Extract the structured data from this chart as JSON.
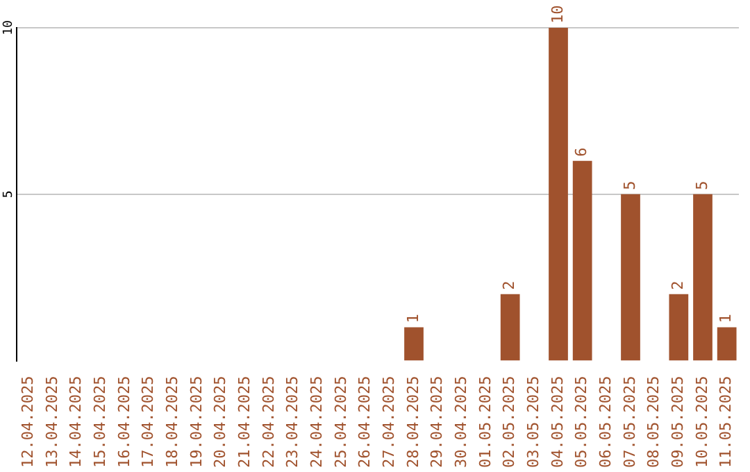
{
  "chart_data": {
    "type": "bar",
    "categories": [
      "12.04.2025",
      "13.04.2025",
      "14.04.2025",
      "15.04.2025",
      "16.04.2025",
      "17.04.2025",
      "18.04.2025",
      "19.04.2025",
      "20.04.2025",
      "21.04.2025",
      "22.04.2025",
      "23.04.2025",
      "24.04.2025",
      "25.04.2025",
      "26.04.2025",
      "27.04.2025",
      "28.04.2025",
      "29.04.2025",
      "30.04.2025",
      "01.05.2025",
      "02.05.2025",
      "03.05.2025",
      "04.05.2025",
      "05.05.2025",
      "06.05.2025",
      "07.05.2025",
      "08.05.2025",
      "09.05.2025",
      "10.05.2025",
      "11.05.2025"
    ],
    "values": [
      0,
      0,
      0,
      0,
      0,
      0,
      0,
      0,
      0,
      0,
      0,
      0,
      0,
      0,
      0,
      0,
      1,
      0,
      0,
      0,
      2,
      0,
      10,
      6,
      0,
      5,
      0,
      2,
      5,
      1
    ],
    "value_labels": [
      null,
      null,
      null,
      null,
      null,
      null,
      null,
      null,
      null,
      null,
      null,
      null,
      null,
      null,
      null,
      null,
      "1",
      null,
      null,
      null,
      "2",
      null,
      "10",
      "6",
      null,
      "5",
      null,
      "2",
      "5",
      "1"
    ],
    "color": "#a0522d",
    "ylim": [
      0,
      10
    ],
    "yticks": [
      5,
      10
    ],
    "grid": "y",
    "legend": false
  }
}
